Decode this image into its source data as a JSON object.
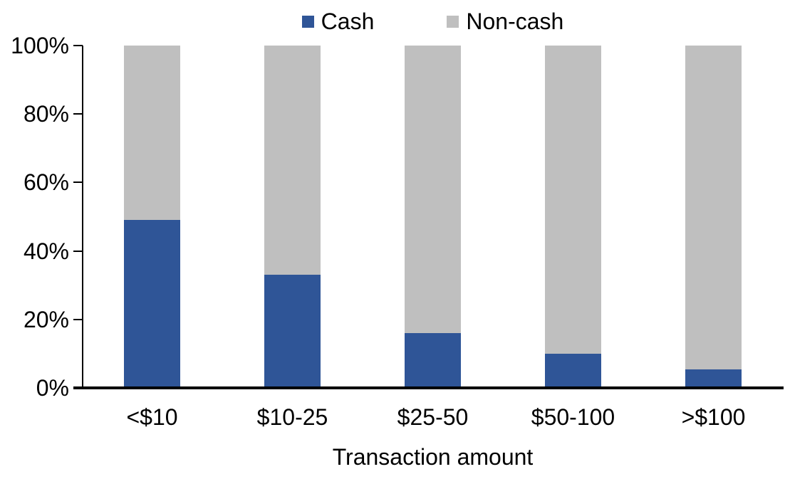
{
  "chart_data": {
    "type": "bar",
    "variant": "stacked-100",
    "title": "",
    "xlabel": "Transaction amount",
    "ylabel": "",
    "categories": [
      "<$10",
      "$10-25",
      "$25-50",
      "$50-100",
      ">$100"
    ],
    "series": [
      {
        "name": "Cash",
        "color": "#2F5597",
        "values": [
          49,
          33,
          16,
          10,
          5.5
        ]
      },
      {
        "name": "Non-cash",
        "color": "#BFBFBF",
        "values": [
          51,
          67,
          84,
          90,
          94.5
        ]
      }
    ],
    "ylim": [
      0,
      100
    ],
    "y_ticks": [
      "0%",
      "20%",
      "40%",
      "60%",
      "80%",
      "100%"
    ],
    "y_tick_values": [
      0,
      20,
      40,
      60,
      80,
      100
    ],
    "grid": false,
    "legend_position": "top",
    "axis_color": "#000000",
    "text_color": "#000000",
    "background": "#FFFFFF"
  }
}
